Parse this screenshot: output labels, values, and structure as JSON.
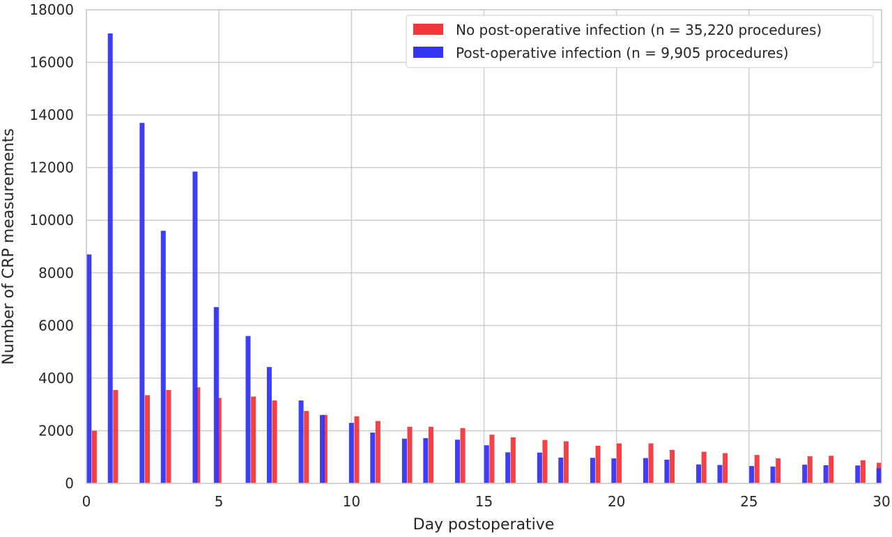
{
  "chart_data": {
    "type": "bar",
    "xlabel": "Day postoperative",
    "ylabel": "Number of CRP measurements",
    "xlim": [
      0,
      30
    ],
    "ylim": [
      0,
      18000
    ],
    "x_ticks": [
      0,
      5,
      10,
      15,
      20,
      25,
      30
    ],
    "y_ticks": [
      0,
      2000,
      4000,
      6000,
      8000,
      10000,
      12000,
      14000,
      16000,
      18000
    ],
    "grid": true,
    "legend_position": "top-right",
    "series": [
      {
        "name": "No post-operative infection (n = 35,220 procedures)",
        "color": "#f4363b",
        "points": [
          [
            0.3,
            2000
          ],
          [
            1.1,
            3550
          ],
          [
            2.3,
            3350
          ],
          [
            3.1,
            3550
          ],
          [
            4.2,
            3650
          ],
          [
            5.0,
            3250
          ],
          [
            6.3,
            3300
          ],
          [
            7.1,
            3150
          ],
          [
            8.3,
            2750
          ],
          [
            9.0,
            2600
          ],
          [
            10.2,
            2550
          ],
          [
            11.0,
            2370
          ],
          [
            12.2,
            2150
          ],
          [
            13.0,
            2150
          ],
          [
            14.2,
            2100
          ],
          [
            15.3,
            1850
          ],
          [
            16.1,
            1750
          ],
          [
            17.3,
            1650
          ],
          [
            18.1,
            1600
          ],
          [
            19.3,
            1430
          ],
          [
            20.1,
            1520
          ],
          [
            21.3,
            1520
          ],
          [
            22.1,
            1270
          ],
          [
            23.3,
            1200
          ],
          [
            24.1,
            1150
          ],
          [
            25.3,
            1080
          ],
          [
            26.1,
            950
          ],
          [
            27.3,
            1030
          ],
          [
            28.1,
            1050
          ],
          [
            29.3,
            880
          ],
          [
            30.0,
            780
          ]
        ]
      },
      {
        "name": "Post-operative infection (n = 9,905 procedures)",
        "color": "#3434f5",
        "points": [
          [
            0.1,
            8700
          ],
          [
            0.9,
            17100
          ],
          [
            2.1,
            13700
          ],
          [
            2.9,
            9600
          ],
          [
            4.1,
            11850
          ],
          [
            4.9,
            6700
          ],
          [
            6.1,
            5600
          ],
          [
            6.9,
            4420
          ],
          [
            8.1,
            3150
          ],
          [
            8.9,
            2600
          ],
          [
            10.0,
            2300
          ],
          [
            10.8,
            1930
          ],
          [
            12.0,
            1700
          ],
          [
            12.8,
            1720
          ],
          [
            14.0,
            1660
          ],
          [
            15.1,
            1450
          ],
          [
            15.9,
            1180
          ],
          [
            17.1,
            1170
          ],
          [
            17.9,
            980
          ],
          [
            19.1,
            970
          ],
          [
            19.9,
            950
          ],
          [
            21.1,
            960
          ],
          [
            21.9,
            900
          ],
          [
            23.1,
            720
          ],
          [
            23.9,
            700
          ],
          [
            25.1,
            660
          ],
          [
            25.9,
            640
          ],
          [
            27.1,
            710
          ],
          [
            27.9,
            690
          ],
          [
            29.1,
            680
          ],
          [
            29.9,
            570
          ]
        ]
      }
    ]
  }
}
